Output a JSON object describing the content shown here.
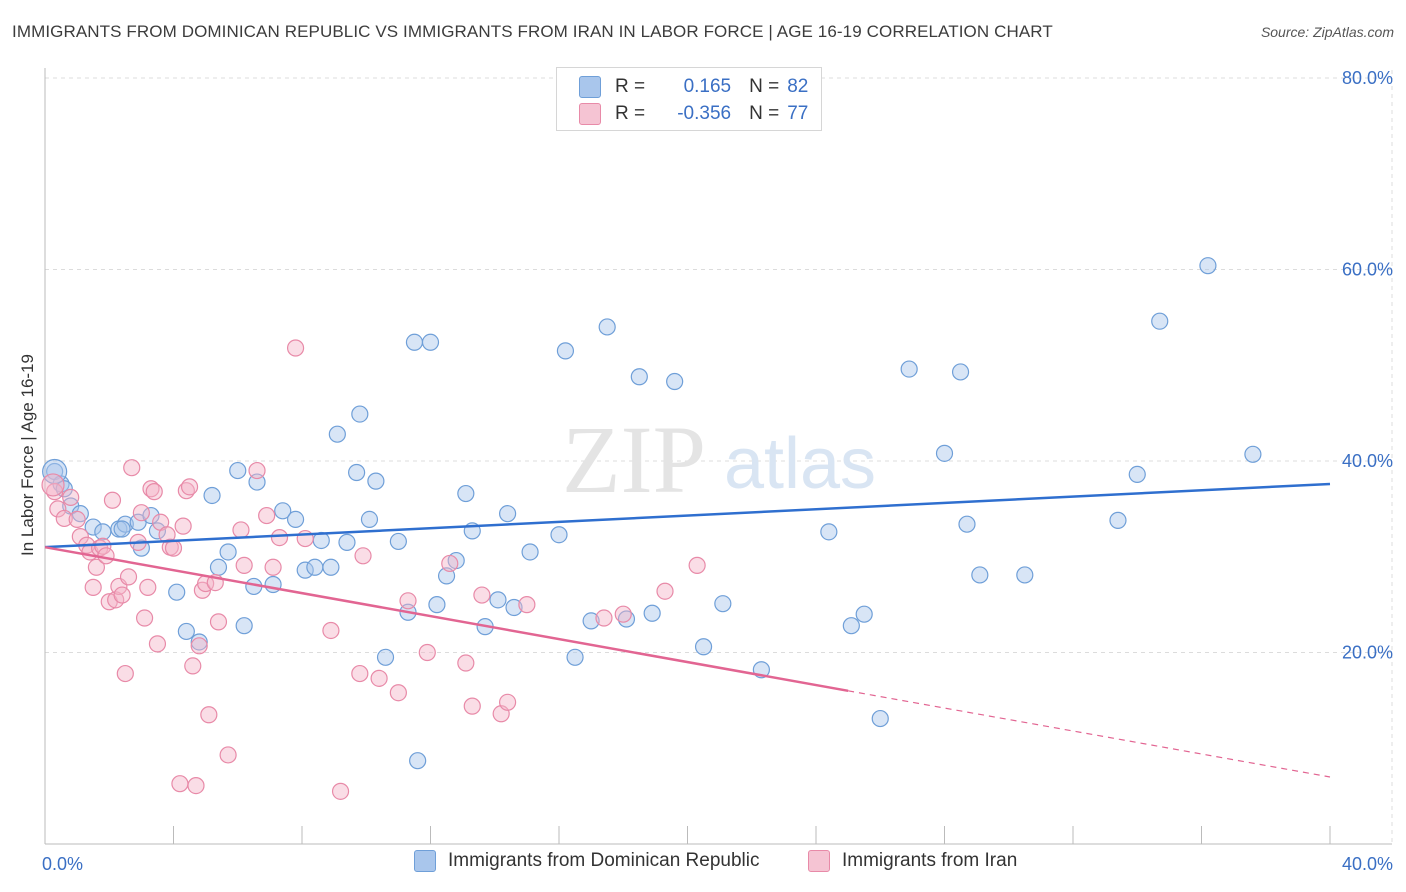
{
  "title": "IMMIGRANTS FROM DOMINICAN REPUBLIC VS IMMIGRANTS FROM IRAN IN LABOR FORCE | AGE 16-19 CORRELATION CHART",
  "source": "Source: ZipAtlas.com",
  "watermark": {
    "zip": "ZIP",
    "atlas": "atlas"
  },
  "legend": {
    "rows": [
      {
        "r_label": "R =",
        "r_value": "0.165",
        "n_label": "N =",
        "n_value": "82"
      },
      {
        "r_label": "R =",
        "r_value": "-0.356",
        "n_label": "N =",
        "n_value": "77"
      }
    ]
  },
  "bottom_legend": [
    "Immigrants from Dominican Republic",
    "Immigrants from Iran"
  ],
  "colors": {
    "blue_fill": "#a9c6ec",
    "blue_stroke": "#6f9fd8",
    "blue_line": "#2f6fcf",
    "pink_fill": "#f5b3c7",
    "pink_stroke": "#e88aa8",
    "pink_line": "#e26592",
    "axis_text": "#3a6fc4",
    "grid": "#dcdcdc"
  },
  "chart_data": {
    "type": "scatter",
    "title": "IMMIGRANTS FROM DOMINICAN REPUBLIC VS IMMIGRANTS FROM IRAN IN LABOR FORCE | AGE 16-19 CORRELATION CHART",
    "xlabel": "",
    "ylabel": "In Labor Force | Age 16-19",
    "xlim": [
      0,
      40
    ],
    "ylim": [
      0,
      80
    ],
    "x_tick_labels": [
      "0.0%",
      "40.0%"
    ],
    "y_tick_labels": [
      "20.0%",
      "40.0%",
      "60.0%",
      "80.0%"
    ],
    "y_ticks": [
      20,
      40,
      60,
      80
    ],
    "grid": true,
    "series": [
      {
        "name": "Immigrants from Dominican Republic",
        "color": "blue",
        "trend": {
          "x": [
            0,
            40
          ],
          "y": [
            31.0,
            37.6
          ]
        },
        "points": [
          [
            0.3,
            38.9
          ],
          [
            0.5,
            37.6
          ],
          [
            0.8,
            35.3
          ],
          [
            0.6,
            37.1
          ],
          [
            1.1,
            34.5
          ],
          [
            1.5,
            33.1
          ],
          [
            1.8,
            32.6
          ],
          [
            2.3,
            32.9
          ],
          [
            2.5,
            33.4
          ],
          [
            2.4,
            32.9
          ],
          [
            2.9,
            33.6
          ],
          [
            3.3,
            34.3
          ],
          [
            3.5,
            32.7
          ],
          [
            3.0,
            30.9
          ],
          [
            4.1,
            26.3
          ],
          [
            4.4,
            22.2
          ],
          [
            4.8,
            21.1
          ],
          [
            5.2,
            36.4
          ],
          [
            5.4,
            28.9
          ],
          [
            5.7,
            30.5
          ],
          [
            6.0,
            39.0
          ],
          [
            6.2,
            22.8
          ],
          [
            6.5,
            26.9
          ],
          [
            6.6,
            37.8
          ],
          [
            7.1,
            27.1
          ],
          [
            7.4,
            34.8
          ],
          [
            7.8,
            33.9
          ],
          [
            8.1,
            28.6
          ],
          [
            8.4,
            28.9
          ],
          [
            8.6,
            31.7
          ],
          [
            8.9,
            28.9
          ],
          [
            9.1,
            42.8
          ],
          [
            9.4,
            31.5
          ],
          [
            9.7,
            38.8
          ],
          [
            9.8,
            44.9
          ],
          [
            10.1,
            33.9
          ],
          [
            10.3,
            37.9
          ],
          [
            10.6,
            19.5
          ],
          [
            11.0,
            31.6
          ],
          [
            11.3,
            24.2
          ],
          [
            11.5,
            52.4
          ],
          [
            11.6,
            8.7
          ],
          [
            12.0,
            52.4
          ],
          [
            12.2,
            25.0
          ],
          [
            12.5,
            28.0
          ],
          [
            12.8,
            29.6
          ],
          [
            13.1,
            36.6
          ],
          [
            13.3,
            32.7
          ],
          [
            13.7,
            22.7
          ],
          [
            14.1,
            25.5
          ],
          [
            14.4,
            34.5
          ],
          [
            14.6,
            24.7
          ],
          [
            15.1,
            30.5
          ],
          [
            16.0,
            32.3
          ],
          [
            16.2,
            51.5
          ],
          [
            16.5,
            19.5
          ],
          [
            17.0,
            23.3
          ],
          [
            17.5,
            54.0
          ],
          [
            18.1,
            23.5
          ],
          [
            18.5,
            48.8
          ],
          [
            18.9,
            24.1
          ],
          [
            19.6,
            48.3
          ],
          [
            20.5,
            20.6
          ],
          [
            21.1,
            25.1
          ],
          [
            22.3,
            18.2
          ],
          [
            24.4,
            32.6
          ],
          [
            25.1,
            22.8
          ],
          [
            25.5,
            24.0
          ],
          [
            26.0,
            13.1
          ],
          [
            26.9,
            49.6
          ],
          [
            28.0,
            40.8
          ],
          [
            28.5,
            49.3
          ],
          [
            28.7,
            33.4
          ],
          [
            29.1,
            28.1
          ],
          [
            30.5,
            28.1
          ],
          [
            33.4,
            33.8
          ],
          [
            34.0,
            38.6
          ],
          [
            34.7,
            54.6
          ],
          [
            36.2,
            60.4
          ],
          [
            37.6,
            40.7
          ]
        ]
      },
      {
        "name": "Immigrants from Iran",
        "color": "pink",
        "trend": {
          "x": [
            0,
            25
          ],
          "y": [
            31.0,
            16.0
          ]
        },
        "trend_dashed": {
          "x": [
            25,
            40
          ],
          "y": [
            16.0,
            7.0
          ]
        },
        "points": [
          [
            0.3,
            36.8
          ],
          [
            0.4,
            35.0
          ],
          [
            0.6,
            34.0
          ],
          [
            0.8,
            36.2
          ],
          [
            1.0,
            33.9
          ],
          [
            1.1,
            32.1
          ],
          [
            1.3,
            31.2
          ],
          [
            1.4,
            30.5
          ],
          [
            1.5,
            26.8
          ],
          [
            1.6,
            28.9
          ],
          [
            1.7,
            30.9
          ],
          [
            1.8,
            31.1
          ],
          [
            1.9,
            30.1
          ],
          [
            2.0,
            25.3
          ],
          [
            2.1,
            35.9
          ],
          [
            2.2,
            25.5
          ],
          [
            2.3,
            26.9
          ],
          [
            2.4,
            26.0
          ],
          [
            2.5,
            17.8
          ],
          [
            2.6,
            27.9
          ],
          [
            2.7,
            39.3
          ],
          [
            2.9,
            31.5
          ],
          [
            3.0,
            34.6
          ],
          [
            3.1,
            23.6
          ],
          [
            3.2,
            26.8
          ],
          [
            3.3,
            37.1
          ],
          [
            3.4,
            36.8
          ],
          [
            3.5,
            20.9
          ],
          [
            3.6,
            33.6
          ],
          [
            3.8,
            32.3
          ],
          [
            3.9,
            31.0
          ],
          [
            4.0,
            30.9
          ],
          [
            4.2,
            6.3
          ],
          [
            4.3,
            33.2
          ],
          [
            4.4,
            36.9
          ],
          [
            4.5,
            37.3
          ],
          [
            4.6,
            18.6
          ],
          [
            4.7,
            6.1
          ],
          [
            4.8,
            20.7
          ],
          [
            4.9,
            26.5
          ],
          [
            5.0,
            27.2
          ],
          [
            5.1,
            13.5
          ],
          [
            5.3,
            27.3
          ],
          [
            5.4,
            23.2
          ],
          [
            5.7,
            9.3
          ],
          [
            6.1,
            32.8
          ],
          [
            6.2,
            29.1
          ],
          [
            6.6,
            39.0
          ],
          [
            6.9,
            34.3
          ],
          [
            7.1,
            28.9
          ],
          [
            7.3,
            32.0
          ],
          [
            7.8,
            51.8
          ],
          [
            8.1,
            31.9
          ],
          [
            8.9,
            22.3
          ],
          [
            9.2,
            5.5
          ],
          [
            9.8,
            17.8
          ],
          [
            9.9,
            30.1
          ],
          [
            10.4,
            17.3
          ],
          [
            11.0,
            15.8
          ],
          [
            11.3,
            25.4
          ],
          [
            11.9,
            20.0
          ],
          [
            12.6,
            29.3
          ],
          [
            13.1,
            18.9
          ],
          [
            13.3,
            14.4
          ],
          [
            13.6,
            26.0
          ],
          [
            14.2,
            13.6
          ],
          [
            14.4,
            14.8
          ],
          [
            15.0,
            25.0
          ],
          [
            17.4,
            23.6
          ],
          [
            18.0,
            24.0
          ],
          [
            19.3,
            26.4
          ],
          [
            20.3,
            29.1
          ]
        ]
      }
    ]
  }
}
